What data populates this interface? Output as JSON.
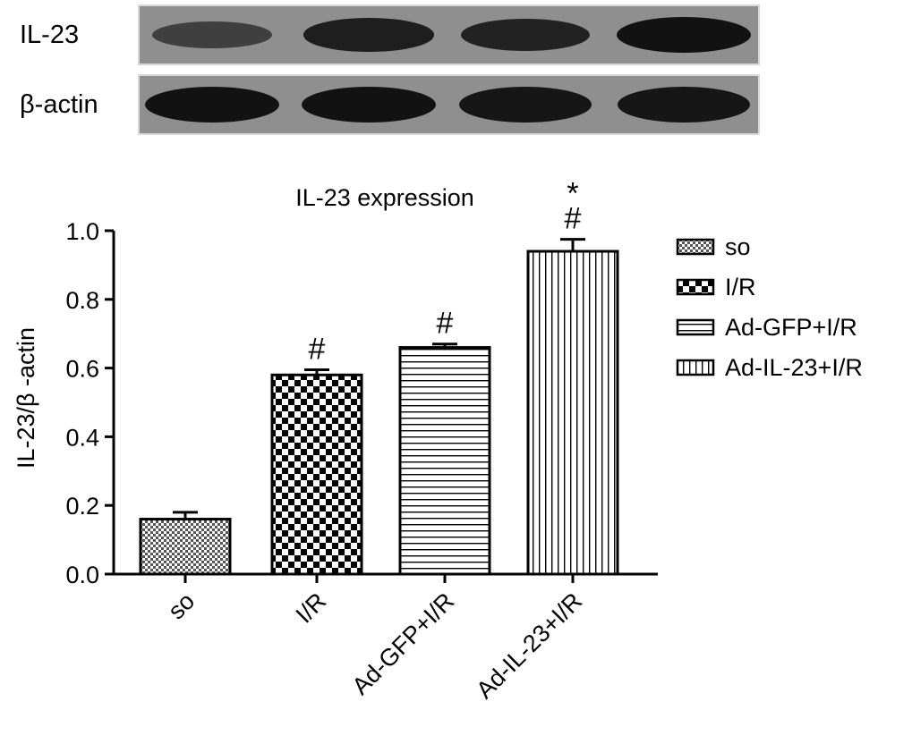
{
  "blot": {
    "rows": [
      {
        "label": "IL-23",
        "band_intensity": [
          0.45,
          0.85,
          0.8,
          1.0
        ]
      },
      {
        "label": "β-actin",
        "band_intensity": [
          1.0,
          1.0,
          0.95,
          0.95
        ]
      }
    ]
  },
  "chart_data": {
    "type": "bar",
    "title": "IL-23 expression",
    "ylabel": "IL-23/β -actin",
    "xlabel": "",
    "ylim": [
      0,
      1.0
    ],
    "yticks": [
      "0.0",
      "0.2",
      "0.4",
      "0.6",
      "0.8",
      "1.0"
    ],
    "categories": [
      "so",
      "I/R",
      "Ad-GFP+I/R",
      "Ad-IL-23+I/R"
    ],
    "values": [
      0.16,
      0.58,
      0.66,
      0.94
    ],
    "errors": [
      0.02,
      0.015,
      0.01,
      0.035
    ],
    "annotations": [
      "",
      "#",
      "#",
      "*\n#"
    ],
    "patterns": [
      "fine-check",
      "checker",
      "horizontal",
      "vertical"
    ],
    "legend": [
      "so",
      "I/R",
      "Ad-GFP+I/R",
      "Ad-IL-23+I/R"
    ],
    "legend_position": "right",
    "grid": false
  }
}
